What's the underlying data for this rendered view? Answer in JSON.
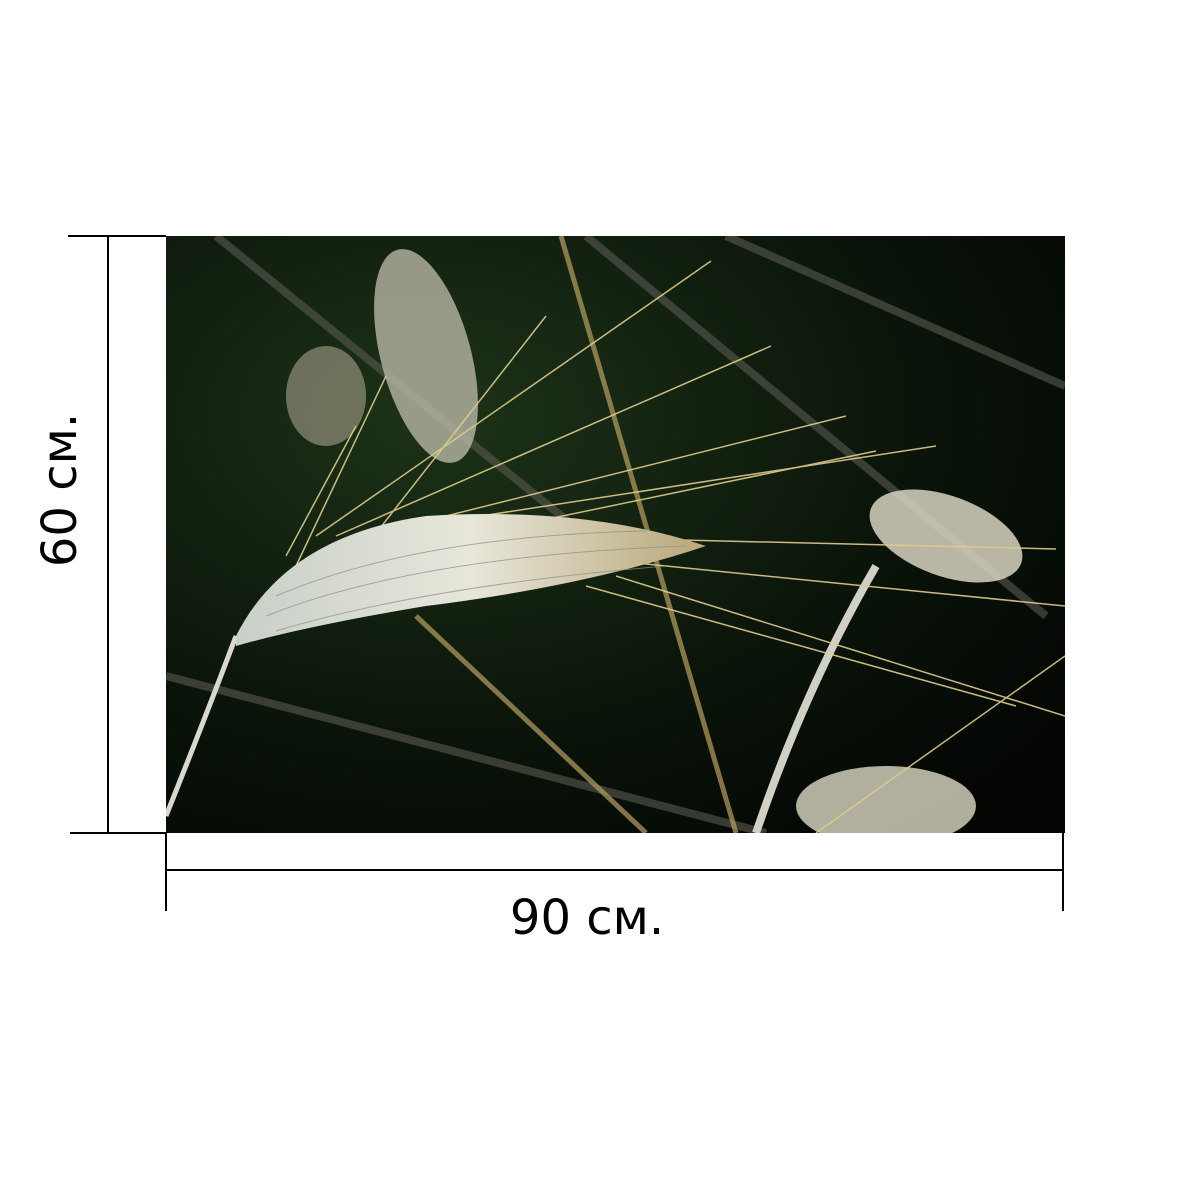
{
  "product": {
    "width_label": "90 см.",
    "height_label": "60 см.",
    "photo_subject": "wheat-ear"
  },
  "colors": {
    "background": "#ffffff",
    "dimension_lines": "#000000",
    "photo_background": "#0a140a",
    "wheat": "#d8d8c8",
    "awns": "#d9c58a"
  }
}
